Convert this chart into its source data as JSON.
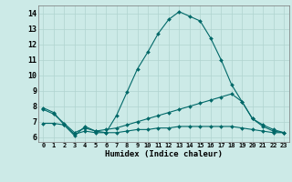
{
  "xlabel": "Humidex (Indice chaleur)",
  "bg_color": "#cceae7",
  "grid_color": "#b0d4d0",
  "line_color": "#006868",
  "xlim": [
    -0.5,
    23.5
  ],
  "ylim": [
    5.7,
    14.5
  ],
  "xticks": [
    0,
    1,
    2,
    3,
    4,
    5,
    6,
    7,
    8,
    9,
    10,
    11,
    12,
    13,
    14,
    15,
    16,
    17,
    18,
    19,
    20,
    21,
    22,
    23
  ],
  "yticks": [
    6,
    7,
    8,
    9,
    10,
    11,
    12,
    13,
    14
  ],
  "series": [
    {
      "x": [
        0,
        1,
        2,
        3,
        4,
        5,
        6,
        7,
        8,
        9,
        10,
        11,
        12,
        13,
        14,
        15,
        16,
        17,
        18,
        19,
        20,
        21,
        22,
        23
      ],
      "y": [
        7.9,
        7.6,
        6.8,
        6.1,
        6.7,
        6.4,
        6.3,
        7.4,
        8.9,
        10.4,
        11.5,
        12.7,
        13.6,
        14.1,
        13.8,
        13.5,
        12.4,
        11.0,
        9.4,
        8.3,
        7.2,
        6.7,
        6.4,
        6.3
      ]
    },
    {
      "x": [
        0,
        1,
        2,
        3,
        4,
        5,
        6,
        7,
        8,
        9,
        10,
        11,
        12,
        13,
        14,
        15,
        16,
        17,
        18,
        19,
        20,
        21,
        22,
        23
      ],
      "y": [
        7.8,
        7.5,
        6.9,
        6.3,
        6.6,
        6.4,
        6.5,
        6.6,
        6.8,
        7.0,
        7.2,
        7.4,
        7.6,
        7.8,
        8.0,
        8.2,
        8.4,
        8.6,
        8.8,
        8.3,
        7.2,
        6.8,
        6.5,
        6.3
      ]
    },
    {
      "x": [
        0,
        1,
        2,
        3,
        4,
        5,
        6,
        7,
        8,
        9,
        10,
        11,
        12,
        13,
        14,
        15,
        16,
        17,
        18,
        19,
        20,
        21,
        22,
        23
      ],
      "y": [
        6.9,
        6.9,
        6.8,
        6.2,
        6.4,
        6.3,
        6.3,
        6.3,
        6.4,
        6.5,
        6.5,
        6.6,
        6.6,
        6.7,
        6.7,
        6.7,
        6.7,
        6.7,
        6.7,
        6.6,
        6.5,
        6.4,
        6.3,
        6.3
      ]
    }
  ]
}
